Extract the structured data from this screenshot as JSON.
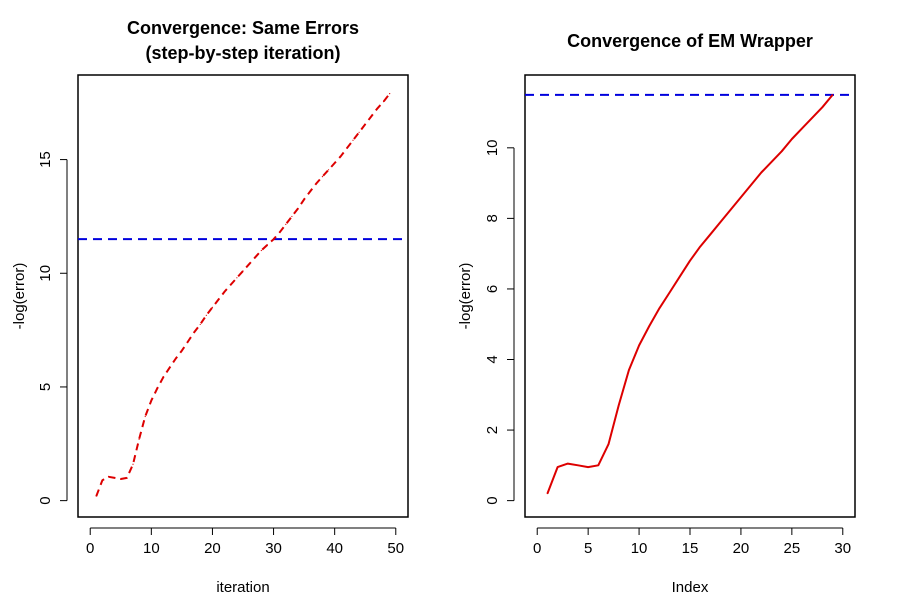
{
  "chart_data": [
    {
      "type": "line",
      "title_lines": [
        "Convergence: Same Errors",
        "(step-by-step iteration)"
      ],
      "xlabel": "iteration",
      "ylabel": "-log(error)",
      "xlim": [
        0,
        50
      ],
      "ylim": [
        0,
        18
      ],
      "x_ticks": [
        0,
        10,
        20,
        30,
        40,
        50
      ],
      "y_ticks": [
        0,
        5,
        10,
        15
      ],
      "series": [
        {
          "line_style": "dashed",
          "color": "#dd0000",
          "x": [
            1,
            2,
            3,
            4,
            5,
            6,
            7,
            8,
            9,
            10,
            11,
            12,
            13,
            14,
            15,
            16,
            17,
            18,
            19,
            20,
            21,
            22,
            23,
            24,
            25,
            26,
            27,
            28,
            29,
            30,
            31,
            32,
            33,
            34,
            35,
            36,
            37,
            38,
            39,
            40,
            41,
            42,
            43,
            44,
            45,
            46,
            47,
            48,
            49
          ],
          "y": [
            0.2,
            0.9,
            1.05,
            1.0,
            0.95,
            1.0,
            1.6,
            2.7,
            3.7,
            4.4,
            4.95,
            5.45,
            5.85,
            6.25,
            6.6,
            7.0,
            7.4,
            7.75,
            8.15,
            8.5,
            8.85,
            9.2,
            9.5,
            9.8,
            10.1,
            10.4,
            10.7,
            11.0,
            11.25,
            11.5,
            11.8,
            12.15,
            12.5,
            12.85,
            13.25,
            13.6,
            13.95,
            14.25,
            14.55,
            14.85,
            15.15,
            15.5,
            15.85,
            16.2,
            16.55,
            16.9,
            17.25,
            17.55,
            17.9
          ]
        }
      ],
      "hline": {
        "y": 11.5,
        "color": "#0000dd",
        "line_style": "dashed"
      }
    },
    {
      "type": "line",
      "title_lines": [
        "Convergence of EM Wrapper"
      ],
      "xlabel": "Index",
      "ylabel": "-log(error)",
      "xlim": [
        0,
        30
      ],
      "ylim": [
        0,
        11.6
      ],
      "x_ticks": [
        0,
        5,
        10,
        15,
        20,
        25,
        30
      ],
      "y_ticks": [
        0,
        2,
        4,
        6,
        8,
        10
      ],
      "series": [
        {
          "line_style": "solid",
          "color": "#dd0000",
          "x": [
            1,
            2,
            3,
            4,
            5,
            6,
            7,
            8,
            9,
            10,
            11,
            12,
            13,
            14,
            15,
            16,
            17,
            18,
            19,
            20,
            21,
            22,
            23,
            24,
            25,
            26,
            27,
            28,
            29
          ],
          "y": [
            0.2,
            0.95,
            1.05,
            1.0,
            0.95,
            1.0,
            1.6,
            2.7,
            3.7,
            4.4,
            4.95,
            5.45,
            5.9,
            6.35,
            6.8,
            7.2,
            7.55,
            7.9,
            8.25,
            8.6,
            8.95,
            9.3,
            9.6,
            9.9,
            10.25,
            10.55,
            10.85,
            11.15,
            11.5
          ]
        }
      ],
      "hline": {
        "y": 11.5,
        "color": "#0000dd",
        "line_style": "dashed"
      }
    }
  ]
}
